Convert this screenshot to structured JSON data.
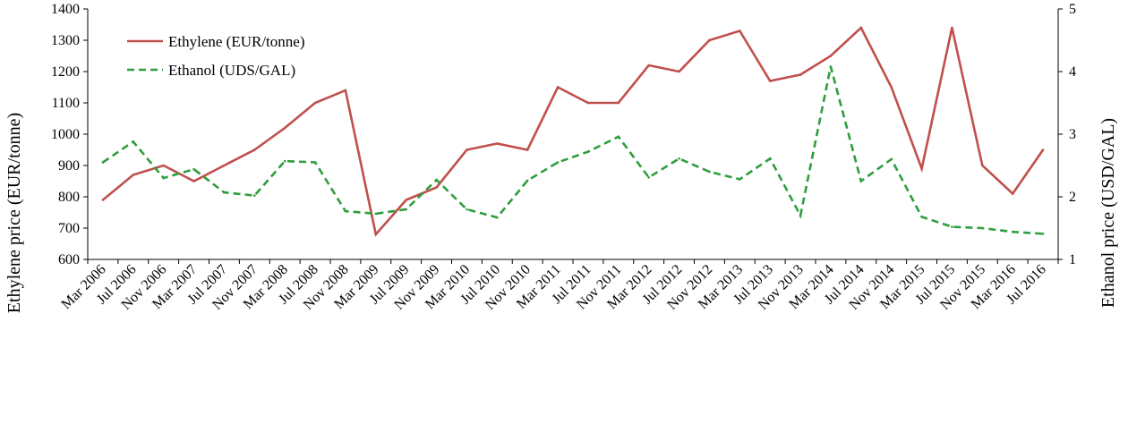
{
  "chart_data": {
    "type": "line",
    "categories": [
      "Mar 2006",
      "Jul 2006",
      "Nov 2006",
      "Mar 2007",
      "Jul 2007",
      "Nov 2007",
      "Mar 2008",
      "Jul 2008",
      "Nov 2008",
      "Mar 2009",
      "Jul 2009",
      "Nov 2009",
      "Mar 2010",
      "Jul 2010",
      "Nov 2010",
      "Mar 2011",
      "Jul 2011",
      "Nov 2011",
      "Mar 2012",
      "Jul 2012",
      "Nov 2012",
      "Mar 2013",
      "Jul 2013",
      "Nov 2013",
      "Mar 2014",
      "Jul 2014",
      "Nov 2014",
      "Mar 2015",
      "Jul 2015",
      "Nov 2015",
      "Mar 2016",
      "Jul 2016"
    ],
    "series": [
      {
        "name": "Ethylene (EUR/tonne)",
        "axis": "left",
        "color": "#c0504d",
        "style": "solid",
        "values": [
          790,
          870,
          900,
          850,
          900,
          950,
          1020,
          1100,
          1140,
          680,
          790,
          830,
          950,
          970,
          950,
          1150,
          1100,
          1100,
          1220,
          1200,
          1300,
          1330,
          1170,
          1190,
          1250,
          1340,
          1150,
          890,
          1340,
          900,
          810,
          950
        ]
      },
      {
        "name": "Ethanol (UDS/GAL)",
        "axis": "right",
        "color": "#2e9e3e",
        "style": "dashed",
        "values": [
          2.55,
          2.88,
          2.3,
          2.44,
          2.07,
          2.02,
          2.57,
          2.55,
          1.77,
          1.73,
          1.8,
          2.27,
          1.8,
          1.67,
          2.26,
          2.55,
          2.72,
          2.96,
          2.31,
          2.61,
          2.4,
          2.28,
          2.61,
          1.7,
          4.08,
          2.25,
          2.6,
          1.68,
          1.52,
          1.5,
          1.44,
          1.41
        ]
      }
    ],
    "ylabel": "Ethylene price (EUR/tonne)",
    "ylabel_right": "Ethanol price (USD/GAL)",
    "ylim": [
      600,
      1400
    ],
    "ylim_right": [
      1,
      5
    ],
    "yticks": [
      600,
      700,
      800,
      900,
      1000,
      1100,
      1200,
      1300,
      1400
    ],
    "yticks_right": [
      1,
      2,
      3,
      4,
      5
    ],
    "grid": false,
    "legend_placement": "top-left"
  }
}
